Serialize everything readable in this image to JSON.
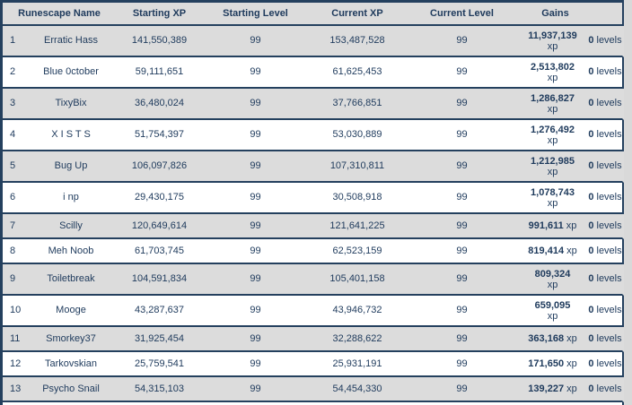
{
  "colors": {
    "border": "#24405e",
    "text": "#1e3a5c",
    "row_gray": "#dcdcdc",
    "row_white": "#ffffff",
    "page_background": "#d9d9d9"
  },
  "table": {
    "header": {
      "name": "Runescape Name",
      "starting_xp": "Starting XP",
      "starting_level": "Starting Level",
      "current_xp": "Current XP",
      "current_level": "Current Level",
      "gains": "Gains"
    },
    "rows": [
      {
        "rank": "1",
        "name": "Erratic Hass",
        "starting_xp": "141,550,389",
        "starting_level": "99",
        "current_xp": "153,487,528",
        "current_level": "99",
        "gain_xp": "11,937,139",
        "gain_xp_unit": "xp",
        "gain_levels": "0",
        "gain_levels_unit": "levels",
        "xp_wrapped": true,
        "shade": "gray"
      },
      {
        "rank": "2",
        "name": "Blue 0ctober",
        "starting_xp": "59,111,651",
        "starting_level": "99",
        "current_xp": "61,625,453",
        "current_level": "99",
        "gain_xp": "2,513,802",
        "gain_xp_unit": "xp",
        "gain_levels": "0",
        "gain_levels_unit": "levels",
        "xp_wrapped": true,
        "shade": "white"
      },
      {
        "rank": "3",
        "name": "TixyBix",
        "starting_xp": "36,480,024",
        "starting_level": "99",
        "current_xp": "37,766,851",
        "current_level": "99",
        "gain_xp": "1,286,827",
        "gain_xp_unit": "xp",
        "gain_levels": "0",
        "gain_levels_unit": "levels",
        "xp_wrapped": true,
        "shade": "gray"
      },
      {
        "rank": "4",
        "name": "X I S T S",
        "starting_xp": "51,754,397",
        "starting_level": "99",
        "current_xp": "53,030,889",
        "current_level": "99",
        "gain_xp": "1,276,492",
        "gain_xp_unit": "xp",
        "gain_levels": "0",
        "gain_levels_unit": "levels",
        "xp_wrapped": true,
        "shade": "white"
      },
      {
        "rank": "5",
        "name": "Bug Up",
        "starting_xp": "106,097,826",
        "starting_level": "99",
        "current_xp": "107,310,811",
        "current_level": "99",
        "gain_xp": "1,212,985",
        "gain_xp_unit": "xp",
        "gain_levels": "0",
        "gain_levels_unit": "levels",
        "xp_wrapped": true,
        "shade": "gray"
      },
      {
        "rank": "6",
        "name": "i np",
        "starting_xp": "29,430,175",
        "starting_level": "99",
        "current_xp": "30,508,918",
        "current_level": "99",
        "gain_xp": "1,078,743",
        "gain_xp_unit": "xp",
        "gain_levels": "0",
        "gain_levels_unit": "levels",
        "xp_wrapped": true,
        "shade": "white"
      },
      {
        "rank": "7",
        "name": "Scilly",
        "starting_xp": "120,649,614",
        "starting_level": "99",
        "current_xp": "121,641,225",
        "current_level": "99",
        "gain_xp": "991,611",
        "gain_xp_unit": "xp",
        "gain_levels": "0",
        "gain_levels_unit": "levels",
        "xp_wrapped": false,
        "shade": "gray"
      },
      {
        "rank": "8",
        "name": "Meh Noob",
        "starting_xp": "61,703,745",
        "starting_level": "99",
        "current_xp": "62,523,159",
        "current_level": "99",
        "gain_xp": "819,414",
        "gain_xp_unit": "xp",
        "gain_levels": "0",
        "gain_levels_unit": "levels",
        "xp_wrapped": false,
        "shade": "white"
      },
      {
        "rank": "9",
        "name": "Toiletbreak",
        "starting_xp": "104,591,834",
        "starting_level": "99",
        "current_xp": "105,401,158",
        "current_level": "99",
        "gain_xp": "809,324",
        "gain_xp_unit": "xp",
        "gain_levels": "0",
        "gain_levels_unit": "levels",
        "xp_wrapped": true,
        "shade": "gray"
      },
      {
        "rank": "10",
        "name": "Mooge",
        "starting_xp": "43,287,637",
        "starting_level": "99",
        "current_xp": "43,946,732",
        "current_level": "99",
        "gain_xp": "659,095",
        "gain_xp_unit": "xp",
        "gain_levels": "0",
        "gain_levels_unit": "levels",
        "xp_wrapped": true,
        "shade": "white"
      },
      {
        "rank": "11",
        "name": "Smorkey37",
        "starting_xp": "31,925,454",
        "starting_level": "99",
        "current_xp": "32,288,622",
        "current_level": "99",
        "gain_xp": "363,168",
        "gain_xp_unit": "xp",
        "gain_levels": "0",
        "gain_levels_unit": "levels",
        "xp_wrapped": false,
        "shade": "gray"
      },
      {
        "rank": "12",
        "name": "Tarkovskian",
        "starting_xp": "25,759,541",
        "starting_level": "99",
        "current_xp": "25,931,191",
        "current_level": "99",
        "gain_xp": "171,650",
        "gain_xp_unit": "xp",
        "gain_levels": "0",
        "gain_levels_unit": "levels",
        "xp_wrapped": false,
        "shade": "white"
      },
      {
        "rank": "13",
        "name": "Psycho Snail",
        "starting_xp": "54,315,103",
        "starting_level": "99",
        "current_xp": "54,454,330",
        "current_level": "99",
        "gain_xp": "139,227",
        "gain_xp_unit": "xp",
        "gain_levels": "0",
        "gain_levels_unit": "levels",
        "xp_wrapped": false,
        "shade": "gray"
      }
    ]
  }
}
